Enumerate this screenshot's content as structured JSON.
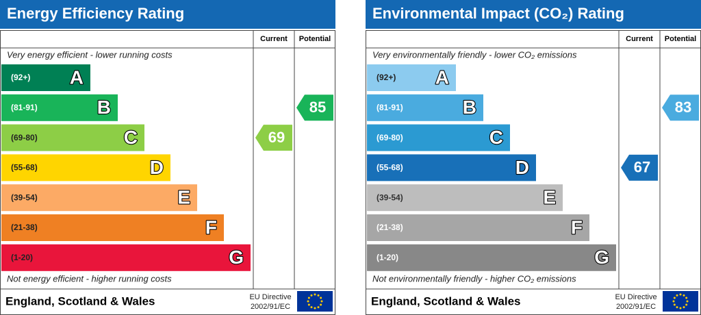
{
  "panels": [
    {
      "title": "Energy Efficiency Rating",
      "current_header": "Current",
      "potential_header": "Potential",
      "top_note": "Very energy efficient - lower running costs",
      "bottom_note": "Not energy efficient - higher running costs",
      "bands": [
        {
          "range": "(92+)",
          "letter": "A",
          "color": "#008054",
          "label_color": "#ffffff"
        },
        {
          "range": "(81-91)",
          "letter": "B",
          "color": "#19b459",
          "label_color": "#ffffff"
        },
        {
          "range": "(69-80)",
          "letter": "C",
          "color": "#8dce46",
          "label_color": "#222222"
        },
        {
          "range": "(55-68)",
          "letter": "D",
          "color": "#ffd500",
          "label_color": "#222222"
        },
        {
          "range": "(39-54)",
          "letter": "E",
          "color": "#fcaa65",
          "label_color": "#222222"
        },
        {
          "range": "(21-38)",
          "letter": "F",
          "color": "#ef8023",
          "label_color": "#222222"
        },
        {
          "range": "(1-20)",
          "letter": "G",
          "color": "#e9153b",
          "label_color": "#222222"
        }
      ],
      "current": 69,
      "potential": 85,
      "region": "England, Scotland & Wales",
      "directive": [
        "EU Directive",
        "2002/91/EC"
      ]
    },
    {
      "title": "Environmental Impact (CO₂) Rating",
      "current_header": "Current",
      "potential_header": "Potential",
      "top_note": "Very environmentally friendly - lower CO₂ emissions",
      "bottom_note": "Not environmentally friendly - higher CO₂ emissions",
      "bands": [
        {
          "range": "(92+)",
          "letter": "A",
          "color": "#8ccbef",
          "label_color": "#222222"
        },
        {
          "range": "(81-91)",
          "letter": "B",
          "color": "#4aabdf",
          "label_color": "#ffffff"
        },
        {
          "range": "(69-80)",
          "letter": "C",
          "color": "#2b9ad2",
          "label_color": "#ffffff"
        },
        {
          "range": "(55-68)",
          "letter": "D",
          "color": "#1870b8",
          "label_color": "#ffffff"
        },
        {
          "range": "(39-54)",
          "letter": "E",
          "color": "#bdbdbd",
          "label_color": "#333333"
        },
        {
          "range": "(21-38)",
          "letter": "F",
          "color": "#a6a6a6",
          "label_color": "#ffffff"
        },
        {
          "range": "(1-20)",
          "letter": "G",
          "color": "#888888",
          "label_color": "#ffffff"
        }
      ],
      "current": 67,
      "potential": 83,
      "region": "England, Scotland & Wales",
      "directive": [
        "EU Directive",
        "2002/91/EC"
      ]
    }
  ]
}
